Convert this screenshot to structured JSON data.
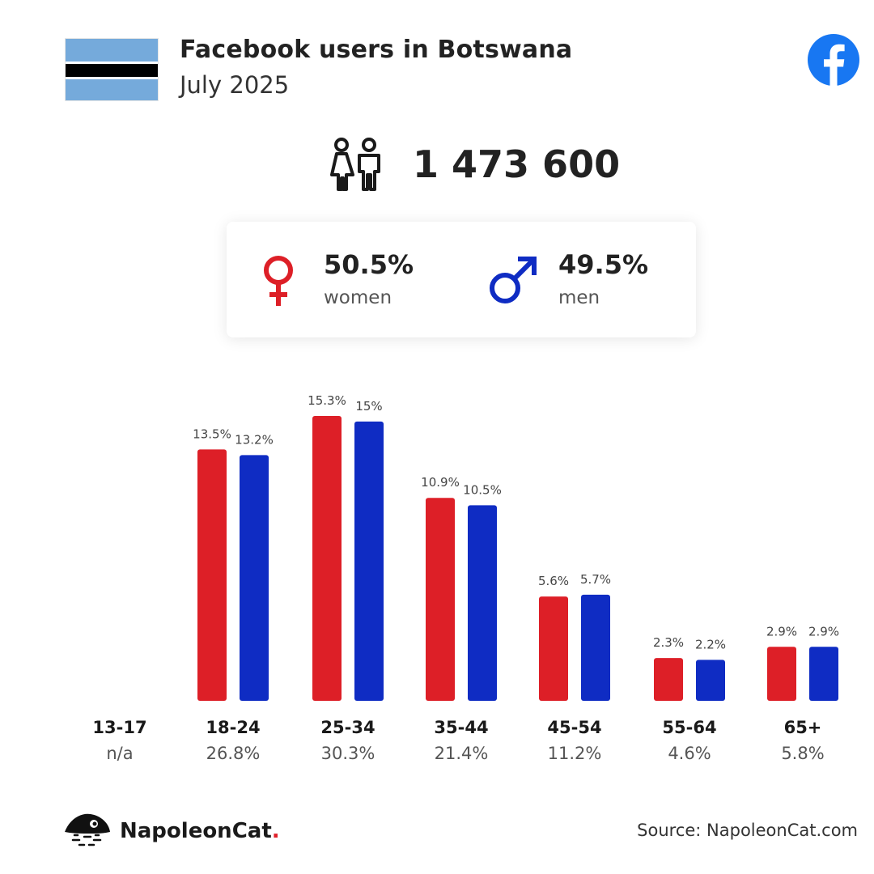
{
  "header": {
    "title": "Facebook users in Botswana",
    "subtitle": "July 2025",
    "flag_colors": {
      "blue": "#75AADB",
      "white": "#FFFFFF",
      "black": "#000000"
    },
    "facebook_icon": "facebook-icon"
  },
  "summary": {
    "total_users": "1 473 600",
    "users_icon": "users-icon"
  },
  "gender": {
    "women_pct": "50.5%",
    "women_label": "women",
    "men_pct": "49.5%",
    "men_label": "men"
  },
  "colors": {
    "women": "#DD1F27",
    "men": "#0F2CC3"
  },
  "chart_data": {
    "type": "bar",
    "categories": [
      "13-17",
      "18-24",
      "25-34",
      "35-44",
      "45-54",
      "55-64",
      "65+"
    ],
    "category_totals": [
      "n/a",
      "26.8%",
      "30.3%",
      "21.4%",
      "11.2%",
      "4.6%",
      "5.8%"
    ],
    "series": [
      {
        "values": [
          null,
          13.5,
          15.3,
          10.9,
          5.6,
          2.3,
          2.9
        ],
        "labels": [
          "",
          "13.5%",
          "15.3%",
          "10.9%",
          "5.6%",
          "2.3%",
          "2.9%"
        ],
        "color": "#DD1F27"
      },
      {
        "values": [
          null,
          13.2,
          15.0,
          10.5,
          5.7,
          2.2,
          2.9
        ],
        "labels": [
          "",
          "13.2%",
          "15%",
          "10.5%",
          "5.7%",
          "2.2%",
          "2.9%"
        ],
        "color": "#0F2CC3"
      }
    ],
    "ylim": [
      0,
      15.3
    ],
    "grid": false,
    "legend": "none"
  },
  "footer": {
    "brand": "NapoleonCat",
    "brand_dot": ".",
    "source": "Source: NapoleonCat.com"
  }
}
